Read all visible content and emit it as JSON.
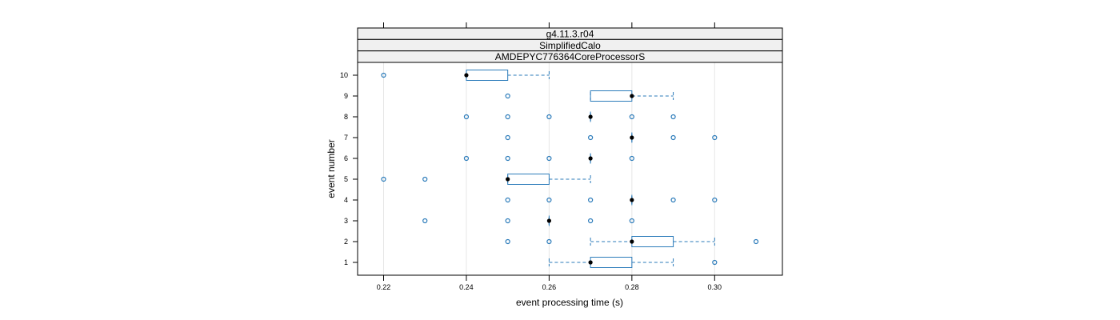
{
  "chart_data": {
    "type": "boxplot",
    "strips": [
      "g4.11.3.r04",
      "SimplifiedCalo",
      "AMDEPYC776364CoreProcessorS"
    ],
    "xlabel": "event processing time (s)",
    "ylabel": "event number",
    "xlim": [
      0.213,
      0.316
    ],
    "x_ticks": [
      0.22,
      0.24,
      0.26,
      0.28,
      0.3
    ],
    "x_tick_labels": [
      "0.22",
      "0.24",
      "0.26",
      "0.28",
      "0.30"
    ],
    "categories": [
      "1",
      "2",
      "3",
      "4",
      "5",
      "6",
      "7",
      "8",
      "9",
      "10"
    ],
    "grid": "vertical",
    "colors": {
      "box": "#2b7bba",
      "outlier": "#2b7bba",
      "median": "#000000",
      "grid": "#e6e6e6",
      "strip_bg": "#f0f0f0"
    },
    "boxes": [
      {
        "event": "1",
        "whisker_low": 0.26,
        "q1": 0.27,
        "median": 0.27,
        "q3": 0.28,
        "whisker_high": 0.29,
        "outliers": [
          0.3
        ]
      },
      {
        "event": "2",
        "whisker_low": 0.27,
        "q1": 0.28,
        "median": 0.28,
        "q3": 0.29,
        "whisker_high": 0.3,
        "outliers": [
          0.25,
          0.26,
          0.31
        ]
      },
      {
        "event": "3",
        "whisker_low": 0.26,
        "q1": 0.26,
        "median": 0.26,
        "q3": 0.26,
        "whisker_high": 0.26,
        "outliers": [
          0.23,
          0.25,
          0.27,
          0.28
        ]
      },
      {
        "event": "4",
        "whisker_low": 0.28,
        "q1": 0.28,
        "median": 0.28,
        "q3": 0.28,
        "whisker_high": 0.28,
        "outliers": [
          0.25,
          0.26,
          0.27,
          0.29,
          0.3
        ]
      },
      {
        "event": "5",
        "whisker_low": 0.25,
        "q1": 0.25,
        "median": 0.25,
        "q3": 0.26,
        "whisker_high": 0.27,
        "outliers": [
          0.22,
          0.23
        ]
      },
      {
        "event": "6",
        "whisker_low": 0.27,
        "q1": 0.27,
        "median": 0.27,
        "q3": 0.27,
        "whisker_high": 0.27,
        "outliers": [
          0.24,
          0.25,
          0.26,
          0.28
        ]
      },
      {
        "event": "7",
        "whisker_low": 0.28,
        "q1": 0.28,
        "median": 0.28,
        "q3": 0.28,
        "whisker_high": 0.28,
        "outliers": [
          0.25,
          0.27,
          0.29,
          0.3
        ]
      },
      {
        "event": "8",
        "whisker_low": 0.27,
        "q1": 0.27,
        "median": 0.27,
        "q3": 0.27,
        "whisker_high": 0.27,
        "outliers": [
          0.24,
          0.25,
          0.26,
          0.28,
          0.29
        ]
      },
      {
        "event": "9",
        "whisker_low": 0.27,
        "q1": 0.27,
        "median": 0.28,
        "q3": 0.28,
        "whisker_high": 0.29,
        "outliers": [
          0.25
        ]
      },
      {
        "event": "10",
        "whisker_low": 0.24,
        "q1": 0.24,
        "median": 0.24,
        "q3": 0.25,
        "whisker_high": 0.26,
        "outliers": [
          0.22
        ]
      }
    ]
  }
}
